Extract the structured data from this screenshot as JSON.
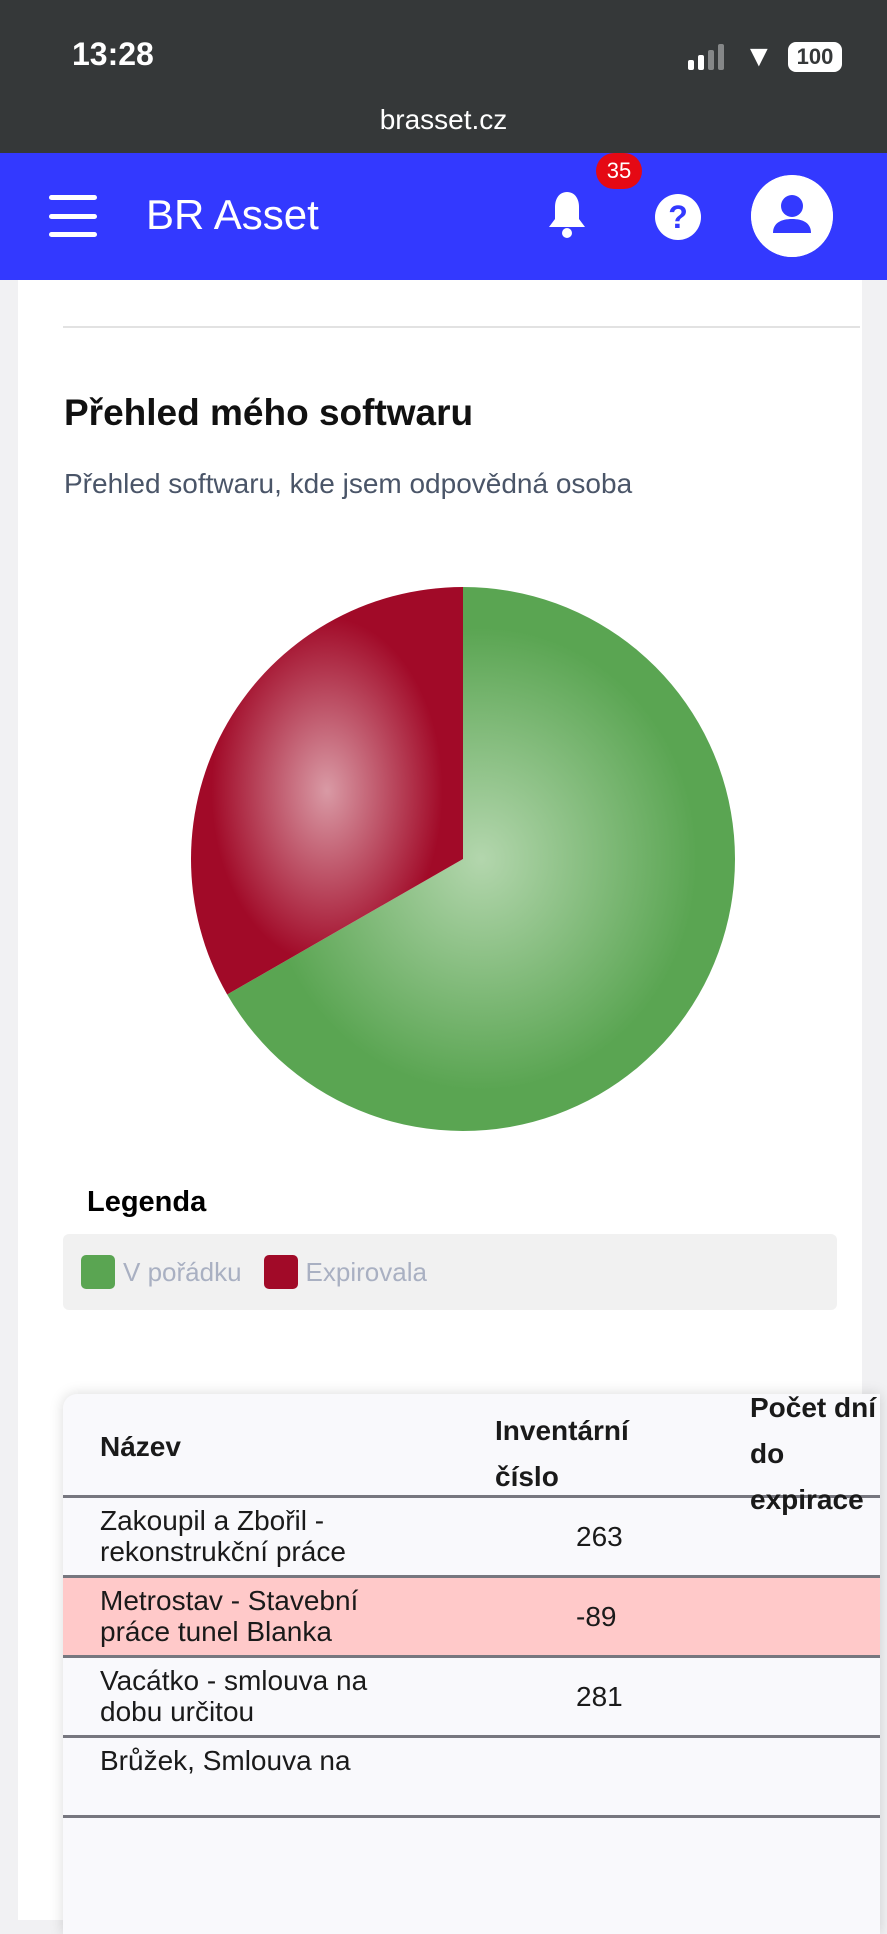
{
  "status_bar": {
    "time": "13:28",
    "battery": "100",
    "url": "brasset.cz"
  },
  "header": {
    "title": "BR Asset",
    "notification_count": "35",
    "help_label": "?"
  },
  "section": {
    "title": "Přehled mého softwaru",
    "subtitle": "Přehled softwaru, kde jsem odpovědná osoba"
  },
  "chart_data": {
    "type": "pie",
    "title": "",
    "labels": [
      "V pořádku",
      "Expirovala"
    ],
    "shares_percent": [
      66.7,
      33.3
    ],
    "colors": [
      "#5aa552",
      "#a10a28"
    ],
    "legend_title": "Legenda",
    "legend_position": "bottom"
  },
  "table": {
    "headers": [
      "Název",
      "Inventární číslo",
      "Počet dní do expirace"
    ],
    "header_lines": {
      "name": "Název",
      "inv1": "Inventární",
      "inv2": "číslo",
      "days1": "Počet d",
      "days2": "do",
      "days3": "expirace"
    },
    "rows": [
      {
        "name": "Zakoupil a Zbořil - rekonstrukční práce",
        "inventory": "",
        "days": "263",
        "expired": false
      },
      {
        "name": "Metrostav - Stavební práce tunel Blanka",
        "inventory": "",
        "days": "-89",
        "expired": true
      },
      {
        "name": "Vacátko - smlouva na dobu určitou",
        "inventory": "",
        "days": "281",
        "expired": false
      },
      {
        "name": "Brůžek, Smlouva na",
        "inventory": "",
        "days": "",
        "expired": false
      }
    ]
  }
}
